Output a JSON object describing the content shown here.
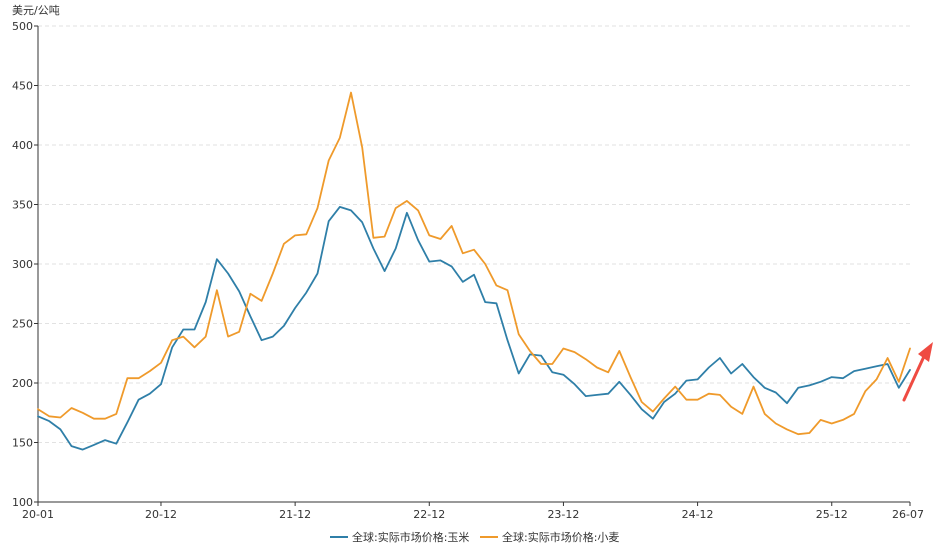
{
  "chart_data": {
    "type": "line",
    "unit": "美元/公吨",
    "ylim": [
      100,
      500
    ],
    "y_ticks": [
      "100",
      "150",
      "200",
      "250",
      "300",
      "350",
      "400",
      "450",
      "500"
    ],
    "x_tick_labels": [
      "20-01",
      "20-12",
      "21-12",
      "22-12",
      "23-12",
      "24-12",
      "25-12",
      "26-07"
    ],
    "grid": "horizontal dashed",
    "legend_position": "bottom-center",
    "series": [
      {
        "name": "全球:实际市场价格:玉米",
        "color": "#2f7fa8",
        "values": [
          172,
          168,
          161,
          147,
          144,
          148,
          152,
          149,
          167,
          186,
          191,
          199,
          230,
          245,
          245,
          268,
          304,
          292,
          277,
          256,
          236,
          239,
          248,
          263,
          276,
          292,
          336,
          348,
          345,
          335,
          313,
          294,
          313,
          343,
          320,
          302,
          303,
          298,
          285,
          291,
          268,
          267,
          236,
          208,
          224,
          223,
          209,
          207,
          199,
          189,
          190,
          191,
          201,
          190,
          178,
          170,
          184,
          191,
          202,
          203,
          213,
          221,
          208,
          216,
          205,
          196,
          192,
          183,
          196,
          198,
          201,
          205,
          204,
          210,
          212,
          214,
          216,
          196,
          211
        ]
      },
      {
        "name": "全球:实际市场价格:小麦",
        "color": "#ef9a2b",
        "values": [
          178,
          172,
          171,
          179,
          175,
          170,
          170,
          174,
          204,
          204,
          210,
          217,
          236,
          239,
          230,
          239,
          278,
          239,
          243,
          275,
          269,
          292,
          317,
          324,
          325,
          347,
          387,
          406,
          444,
          398,
          322,
          323,
          347,
          353,
          345,
          324,
          321,
          332,
          309,
          312,
          300,
          282,
          278,
          241,
          227,
          216,
          216,
          229,
          226,
          220,
          213,
          209,
          227,
          205,
          184,
          176,
          187,
          197,
          186,
          186,
          191,
          190,
          180,
          174,
          197,
          174,
          166,
          161,
          157,
          158,
          169,
          166,
          169,
          174,
          193,
          203,
          221,
          201,
          229
        ]
      }
    ]
  },
  "annotation": {
    "type": "arrow",
    "color": "#ef4b42"
  }
}
